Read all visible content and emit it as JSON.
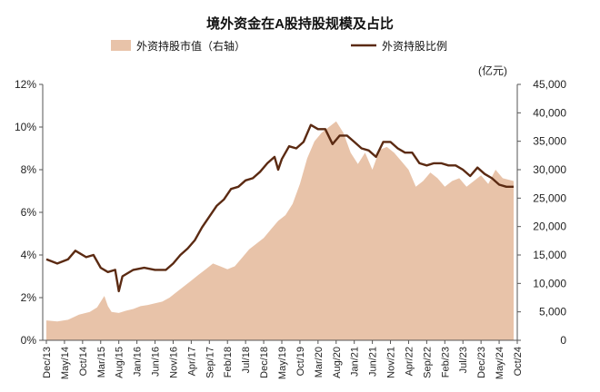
{
  "chart_data": {
    "type": "line+area",
    "title": "境外资金在A股持股规模及占比",
    "legend": [
      {
        "name": "外资持股市值（右轴）",
        "kind": "area",
        "color": "#e8c3a9"
      },
      {
        "name": "外资持股比例",
        "kind": "line",
        "color": "#5b2a12"
      }
    ],
    "left_axis": {
      "ticks": [
        "0%",
        "2%",
        "4%",
        "6%",
        "8%",
        "10%",
        "12%"
      ],
      "range": [
        0,
        12
      ]
    },
    "right_axis": {
      "unit": "(亿元)",
      "ticks": [
        "0",
        "5,000",
        "10,000",
        "15,000",
        "20,000",
        "25,000",
        "30,000",
        "35,000",
        "40,000",
        "45,000"
      ],
      "range": [
        0,
        45000
      ]
    },
    "x_ticks": [
      "Dec/13",
      "May/14",
      "Oct/14",
      "Mar/15",
      "Aug/15",
      "Jan/16",
      "Jun/16",
      "Nov/16",
      "Apr/17",
      "Sep/17",
      "Feb/18",
      "Jul/18",
      "Dec/18",
      "May/19",
      "Oct/19",
      "Mar/20",
      "Aug/20",
      "Jan/21",
      "Jun/21",
      "Nov/21",
      "Apr/22",
      "Sep/22",
      "Feb/23",
      "Jul/23",
      "Dec/23",
      "May/24",
      "Oct/24"
    ],
    "x_start": "2013-12",
    "area_series": {
      "name": "外资持股市值（右轴）",
      "points": [
        [
          0,
          3500
        ],
        [
          3,
          3300
        ],
        [
          6,
          3600
        ],
        [
          9,
          4500
        ],
        [
          12,
          5000
        ],
        [
          14,
          5800
        ],
        [
          15,
          6800
        ],
        [
          16,
          7800
        ],
        [
          17,
          6000
        ],
        [
          18,
          5000
        ],
        [
          20,
          4800
        ],
        [
          22,
          5200
        ],
        [
          24,
          5500
        ],
        [
          26,
          6000
        ],
        [
          28,
          6200
        ],
        [
          30,
          6500
        ],
        [
          32,
          6800
        ],
        [
          34,
          7500
        ],
        [
          36,
          8500
        ],
        [
          38,
          9500
        ],
        [
          40,
          10500
        ],
        [
          42,
          11500
        ],
        [
          44,
          12500
        ],
        [
          46,
          13500
        ],
        [
          48,
          13000
        ],
        [
          50,
          12500
        ],
        [
          52,
          13000
        ],
        [
          54,
          14500
        ],
        [
          56,
          16000
        ],
        [
          58,
          17000
        ],
        [
          60,
          18000
        ],
        [
          62,
          19500
        ],
        [
          64,
          21000
        ],
        [
          66,
          22000
        ],
        [
          68,
          24000
        ],
        [
          70,
          27500
        ],
        [
          72,
          32000
        ],
        [
          74,
          35000
        ],
        [
          76,
          36500
        ],
        [
          78,
          37500
        ],
        [
          80,
          38500
        ],
        [
          82,
          36500
        ],
        [
          84,
          33000
        ],
        [
          86,
          31000
        ],
        [
          88,
          33000
        ],
        [
          90,
          30000
        ],
        [
          92,
          33500
        ],
        [
          94,
          34000
        ],
        [
          96,
          33000
        ],
        [
          98,
          31500
        ],
        [
          100,
          30000
        ],
        [
          102,
          27000
        ],
        [
          104,
          28000
        ],
        [
          106,
          29500
        ],
        [
          108,
          28500
        ],
        [
          110,
          27000
        ],
        [
          112,
          28000
        ],
        [
          114,
          28500
        ],
        [
          116,
          27000
        ],
        [
          118,
          28000
        ],
        [
          120,
          29000
        ],
        [
          122,
          27500
        ],
        [
          124,
          30000
        ],
        [
          126,
          28500
        ],
        [
          129,
          28000
        ]
      ]
    },
    "line_series": {
      "name": "外资持股比例",
      "points": [
        [
          0,
          3.8
        ],
        [
          3,
          3.6
        ],
        [
          6,
          3.8
        ],
        [
          8,
          4.2
        ],
        [
          11,
          3.9
        ],
        [
          13,
          4.0
        ],
        [
          15,
          3.4
        ],
        [
          17,
          3.2
        ],
        [
          19,
          3.3
        ],
        [
          20,
          2.3
        ],
        [
          21,
          3.0
        ],
        [
          24,
          3.3
        ],
        [
          27,
          3.4
        ],
        [
          30,
          3.3
        ],
        [
          33,
          3.3
        ],
        [
          35,
          3.6
        ],
        [
          37,
          4.0
        ],
        [
          39,
          4.3
        ],
        [
          41,
          4.7
        ],
        [
          43,
          5.3
        ],
        [
          45,
          5.8
        ],
        [
          47,
          6.3
        ],
        [
          49,
          6.6
        ],
        [
          51,
          7.1
        ],
        [
          53,
          7.2
        ],
        [
          55,
          7.5
        ],
        [
          57,
          7.6
        ],
        [
          59,
          7.9
        ],
        [
          61,
          8.3
        ],
        [
          63,
          8.6
        ],
        [
          64,
          8.0
        ],
        [
          65,
          8.5
        ],
        [
          67,
          9.1
        ],
        [
          69,
          9.0
        ],
        [
          71,
          9.3
        ],
        [
          73,
          10.1
        ],
        [
          75,
          9.9
        ],
        [
          77,
          9.9
        ],
        [
          79,
          9.2
        ],
        [
          81,
          9.6
        ],
        [
          83,
          9.6
        ],
        [
          85,
          9.3
        ],
        [
          87,
          9.0
        ],
        [
          89,
          8.9
        ],
        [
          91,
          8.6
        ],
        [
          93,
          9.3
        ],
        [
          95,
          9.3
        ],
        [
          97,
          9.0
        ],
        [
          99,
          8.8
        ],
        [
          101,
          8.8
        ],
        [
          103,
          8.3
        ],
        [
          105,
          8.2
        ],
        [
          107,
          8.3
        ],
        [
          109,
          8.3
        ],
        [
          111,
          8.2
        ],
        [
          113,
          8.2
        ],
        [
          115,
          8.0
        ],
        [
          117,
          7.7
        ],
        [
          119,
          8.1
        ],
        [
          121,
          7.8
        ],
        [
          123,
          7.6
        ],
        [
          125,
          7.3
        ],
        [
          127,
          7.2
        ],
        [
          129,
          7.2
        ]
      ]
    }
  }
}
